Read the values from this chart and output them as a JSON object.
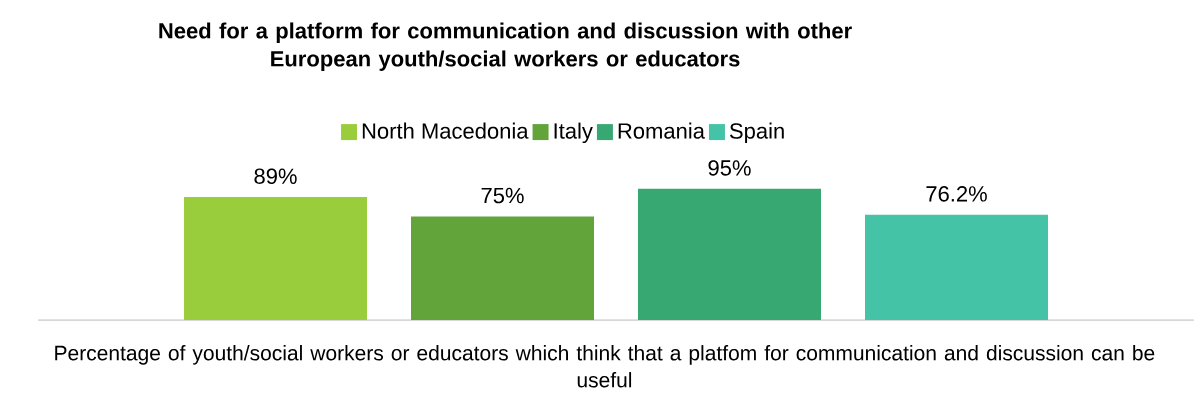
{
  "chart_data": {
    "type": "bar",
    "title": "Need for a platform for communication and discussion with other European youth/social workers or educators",
    "xlabel": "Percentage of youth/social workers or educators which think that a platfom for communication and discussion can be useful",
    "categories": [
      null
    ],
    "legend": "top",
    "series": [
      {
        "name": "North Macedonia",
        "color": "#9acd3c",
        "values": [
          89
        ],
        "value_labels": [
          "89%"
        ]
      },
      {
        "name": "Italy",
        "color": "#62a43a",
        "values": [
          75
        ],
        "value_labels": [
          "75%"
        ]
      },
      {
        "name": "Romania",
        "color": "#38a872",
        "values": [
          95
        ],
        "value_labels": [
          "95%"
        ]
      },
      {
        "name": "Spain",
        "color": "#45c3a7",
        "values": [
          76.2
        ],
        "value_labels": [
          "76.2%"
        ]
      }
    ]
  }
}
